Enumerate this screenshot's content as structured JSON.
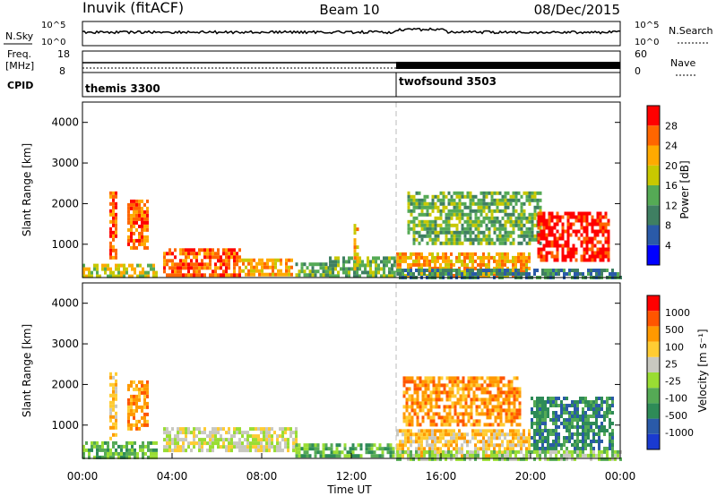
{
  "header": {
    "station": "Inuvik (fitACF)",
    "beam": "Beam 10",
    "date": "08/Dec/2015"
  },
  "sky_panel": {
    "left_label": "N.Sky",
    "right_label": "N.Search",
    "left_ticks": [
      "10^5",
      "10^0"
    ],
    "right_ticks": [
      "10^5",
      "10^0"
    ]
  },
  "freq_panel": {
    "left_label_1": "Freq.",
    "left_label_2": "[MHz]",
    "right_label": "Nave",
    "left_ticks": [
      "18",
      "8"
    ],
    "right_ticks": [
      "60",
      "0"
    ]
  },
  "cpid_panel": {
    "label": "CPID",
    "segments": [
      {
        "name": "themis 3300",
        "start_h": 0,
        "end_h": 14.0
      },
      {
        "name": "twofsound 3503",
        "start_h": 14.0,
        "end_h": 24
      }
    ]
  },
  "colors": {
    "power_scale": [
      "#0000ff",
      "#2a5aa8",
      "#3f7f62",
      "#55aa55",
      "#c8c800",
      "#ffaa00",
      "#ff6600",
      "#ff0000"
    ],
    "velocity_scale": [
      "#ff0000",
      "#ff5500",
      "#ff9900",
      "#ffcc33",
      "#c8c8c0",
      "#99dd33",
      "#55aa55",
      "#2e8b57",
      "#2a5aa8",
      "#1a3ad0"
    ]
  },
  "chart_data": [
    {
      "type": "heatmap",
      "name": "power",
      "ylabel": "Slant Range [km]",
      "ylim": [
        180,
        4500
      ],
      "yticks": [
        "1000",
        "2000",
        "3000",
        "4000"
      ],
      "xlim": [
        0,
        24
      ],
      "colorbar": {
        "label": "Power [dB]",
        "ticks": [
          "4",
          "8",
          "12",
          "16",
          "20",
          "24",
          "28"
        ]
      },
      "patches": [
        {
          "t0": 1.2,
          "t1": 1.5,
          "r0": 700,
          "r1": 2300,
          "level": 6
        },
        {
          "t0": 2.0,
          "t1": 2.9,
          "r0": 900,
          "r1": 2100,
          "level": 6
        },
        {
          "t0": 0.0,
          "t1": 3.3,
          "r0": 200,
          "r1": 520,
          "level": 4
        },
        {
          "t0": 3.6,
          "t1": 7.0,
          "r0": 250,
          "r1": 900,
          "level": 6
        },
        {
          "t0": 7.0,
          "t1": 9.3,
          "r0": 250,
          "r1": 650,
          "level": 5
        },
        {
          "t0": 9.5,
          "t1": 11.0,
          "r0": 250,
          "r1": 550,
          "level": 3
        },
        {
          "t0": 11.0,
          "t1": 13.9,
          "r0": 250,
          "r1": 700,
          "level": 3
        },
        {
          "t0": 12.1,
          "t1": 12.3,
          "r0": 400,
          "r1": 1500,
          "level": 5
        },
        {
          "t0": 14.0,
          "t1": 20.0,
          "r0": 250,
          "r1": 800,
          "level": 5
        },
        {
          "t0": 14.5,
          "t1": 20.5,
          "r0": 1000,
          "r1": 2300,
          "level": 3
        },
        {
          "t0": 20.3,
          "t1": 23.5,
          "r0": 600,
          "r1": 1800,
          "level": 7
        },
        {
          "t0": 14.0,
          "t1": 24.0,
          "r0": 200,
          "r1": 400,
          "level": 2
        }
      ]
    },
    {
      "type": "heatmap",
      "name": "velocity",
      "ylabel": "Slant Range [km]",
      "ylim": [
        180,
        4500
      ],
      "yticks": [
        "1000",
        "2000",
        "3000",
        "4000"
      ],
      "xlim": [
        0,
        24
      ],
      "xticks": [
        "00:00",
        "04:00",
        "08:00",
        "12:00",
        "16:00",
        "20:00",
        "00:00"
      ],
      "xlabel": "Time UT",
      "colorbar": {
        "label": "Velocity [m s⁻¹]",
        "ticks": [
          "1000",
          "500",
          "100",
          "25",
          "-25",
          "-100",
          "-500",
          "-1000"
        ]
      },
      "patches": [
        {
          "t0": 1.2,
          "t1": 1.5,
          "r0": 700,
          "r1": 2300,
          "level": 3
        },
        {
          "t0": 2.0,
          "t1": 2.9,
          "r0": 900,
          "r1": 2100,
          "level": 2
        },
        {
          "t0": 3.6,
          "t1": 9.5,
          "r0": 400,
          "r1": 950,
          "level": 4
        },
        {
          "t0": 0.0,
          "t1": 3.3,
          "r0": 200,
          "r1": 600,
          "level": 6
        },
        {
          "t0": 9.5,
          "t1": 13.9,
          "r0": 250,
          "r1": 550,
          "level": 6
        },
        {
          "t0": 14.3,
          "t1": 19.5,
          "r0": 1000,
          "r1": 2200,
          "level": 2
        },
        {
          "t0": 14.0,
          "t1": 20.0,
          "r0": 250,
          "r1": 900,
          "level": 3
        },
        {
          "t0": 20.0,
          "t1": 23.7,
          "r0": 400,
          "r1": 1700,
          "level": 7
        },
        {
          "t0": 14.0,
          "t1": 24.0,
          "r0": 200,
          "r1": 380,
          "level": 5
        }
      ]
    }
  ]
}
